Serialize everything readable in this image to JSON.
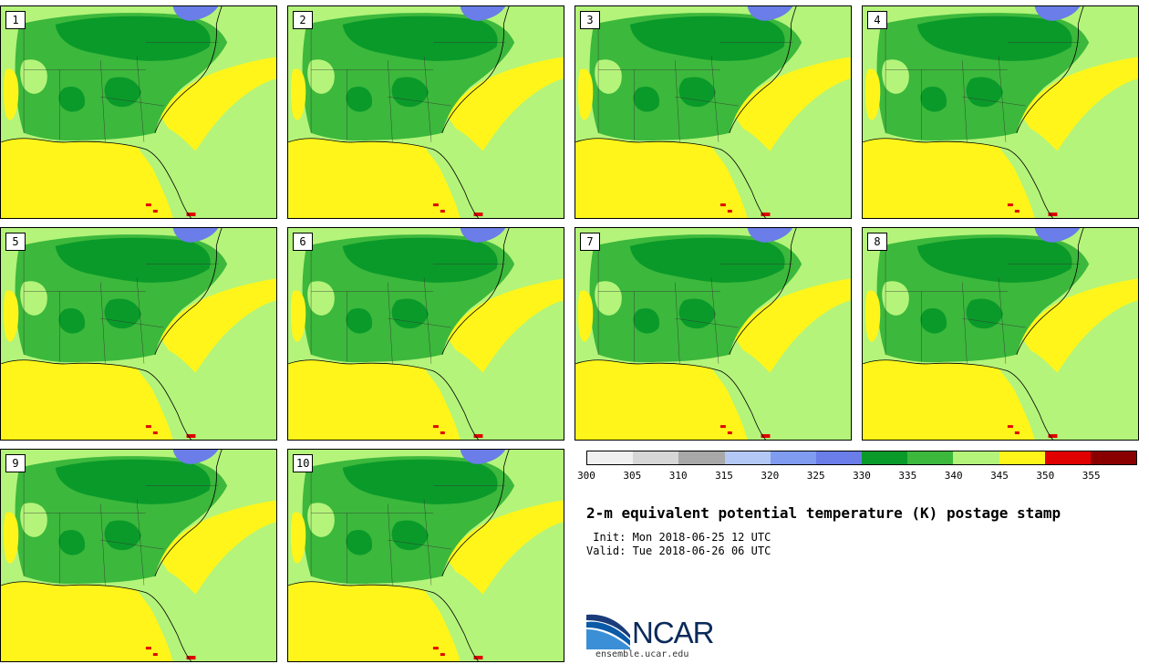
{
  "title": "2-m equivalent potential temperature (K) postage stamp",
  "init": " Init: Mon 2018-06-25 12 UTC",
  "valid": "Valid: Tue 2018-06-26 06 UTC",
  "stamps": [
    "1",
    "2",
    "3",
    "4",
    "5",
    "6",
    "7",
    "8",
    "9",
    "10"
  ],
  "colorbar": {
    "labels": [
      "300",
      "305",
      "310",
      "315",
      "320",
      "325",
      "330",
      "335",
      "340",
      "345",
      "350",
      "355"
    ],
    "colors": [
      "#f0f0f0",
      "#d6d6d6",
      "#a8a8a8",
      "#b4c8f5",
      "#7f9cf0",
      "#6a7de8",
      "#0a9a2a",
      "#3cb83c",
      "#b4f47a",
      "#fff51a",
      "#e00000",
      "#8a0000"
    ]
  },
  "logo": {
    "text": "NCAR",
    "url": "ensemble.ucar.edu"
  }
}
